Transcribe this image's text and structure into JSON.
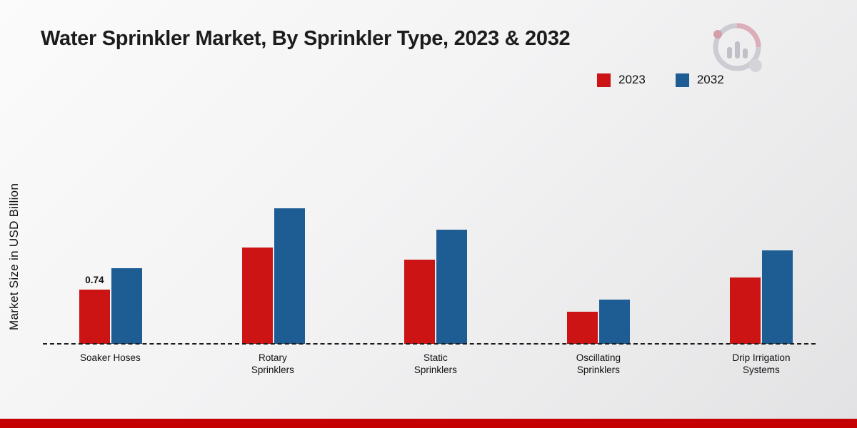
{
  "title": "Water Sprinkler Market, By Sprinkler Type, 2023 & 2032",
  "ylabel": "Market Size in USD Billion",
  "legend": {
    "items": [
      {
        "label": "2023",
        "color": "#cc1414"
      },
      {
        "label": "2032",
        "color": "#1e5d94"
      }
    ]
  },
  "colors": {
    "series_2023": "#cc1414",
    "series_2032": "#1e5d94",
    "footer_strip": "#c40000",
    "baseline": "#1b1b1b"
  },
  "chart_data": {
    "type": "bar",
    "title": "Water Sprinkler Market, By Sprinkler Type, 2023 & 2032",
    "xlabel": "",
    "ylabel": "Market Size in USD Billion",
    "ylim": [
      0,
      2.0
    ],
    "grid": false,
    "legend_position": "top-right",
    "categories": [
      "Soaker Hoses",
      "Rotary Sprinklers",
      "Static Sprinklers",
      "Oscillating Sprinklers",
      "Drip Irrigation Systems"
    ],
    "series": [
      {
        "name": "2023",
        "color": "#cc1414",
        "values": [
          0.74,
          1.31,
          1.15,
          0.44,
          0.91
        ]
      },
      {
        "name": "2032",
        "color": "#1e5d94",
        "values": [
          1.03,
          1.85,
          1.56,
          0.6,
          1.28
        ]
      }
    ],
    "bar_label": {
      "series_index": 0,
      "category_index": 0,
      "text": "0.74"
    }
  }
}
